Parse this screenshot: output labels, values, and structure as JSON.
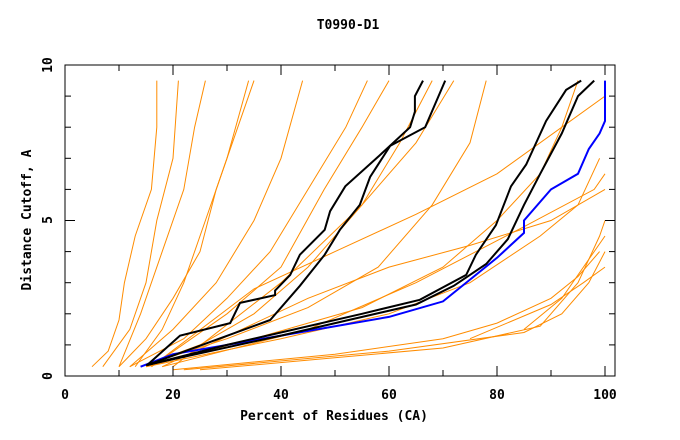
{
  "chart_data": {
    "type": "line",
    "title": "T0990-D1",
    "xlabel": "Percent of Residues (CA)",
    "ylabel": "Distance Cutoff, A",
    "xlim": [
      0,
      100
    ],
    "ylim": [
      0,
      10
    ],
    "x_ticks": [
      "0",
      "20",
      "40",
      "60",
      "80",
      "100"
    ],
    "y_ticks": [
      "0",
      "5",
      "10"
    ],
    "grid": false,
    "colors": {
      "other_models": "#ff8c00",
      "highlighted": "#000000",
      "best": "#0000ff"
    },
    "series": [
      {
        "color": "#0000ff",
        "points": [
          [
            14,
            0.3
          ],
          [
            20,
            0.7
          ],
          [
            40,
            1.3
          ],
          [
            60,
            1.9
          ],
          [
            70,
            2.4
          ],
          [
            75,
            3.1
          ],
          [
            80,
            3.8
          ],
          [
            85,
            4.6
          ],
          [
            85,
            5.0
          ],
          [
            90,
            6.0
          ],
          [
            95,
            6.5
          ],
          [
            97,
            7.3
          ],
          [
            99,
            7.8
          ],
          [
            100,
            8.2
          ],
          [
            100,
            9.5
          ]
        ]
      },
      {
        "color": "#000000",
        "points": [
          [
            15.2,
            0.35
          ],
          [
            21.3,
            1.3
          ],
          [
            30.6,
            1.7
          ],
          [
            32.4,
            2.35
          ],
          [
            38.9,
            2.6
          ],
          [
            38.9,
            2.75
          ],
          [
            41.7,
            3.25
          ],
          [
            43.5,
            3.9
          ],
          [
            48.1,
            4.7
          ],
          [
            49.1,
            5.3
          ],
          [
            51.9,
            6.1
          ],
          [
            58.3,
            7.1
          ],
          [
            63.9,
            8.0
          ],
          [
            64.8,
            8.5
          ],
          [
            64.8,
            9.0
          ],
          [
            66.3,
            9.5
          ]
        ]
      },
      {
        "color": "#000000",
        "points": [
          [
            15.2,
            0.35
          ],
          [
            38,
            1.8
          ],
          [
            43.5,
            2.9
          ],
          [
            48.1,
            3.9
          ],
          [
            50.9,
            4.7
          ],
          [
            54.6,
            5.5
          ],
          [
            56.5,
            6.4
          ],
          [
            60.2,
            7.4
          ],
          [
            66.7,
            8.0
          ],
          [
            70.4,
            9.5
          ]
        ]
      },
      {
        "color": "#000000",
        "points": [
          [
            15.2,
            0.35
          ],
          [
            30,
            1.0
          ],
          [
            55,
            2.0
          ],
          [
            65.7,
            2.45
          ],
          [
            74.3,
            3.25
          ],
          [
            76.1,
            3.9
          ],
          [
            79.8,
            4.85
          ],
          [
            82.6,
            6.1
          ],
          [
            85.4,
            6.8
          ],
          [
            89.1,
            8.2
          ],
          [
            92.8,
            9.2
          ],
          [
            95.6,
            9.5
          ]
        ]
      },
      {
        "color": "#000000",
        "points": [
          [
            15,
            0.35
          ],
          [
            40,
            1.3
          ],
          [
            65,
            2.3
          ],
          [
            72,
            2.9
          ],
          [
            78,
            3.6
          ],
          [
            82,
            4.4
          ],
          [
            85,
            5.5
          ],
          [
            88,
            6.5
          ],
          [
            92,
            7.8
          ],
          [
            95,
            9.0
          ],
          [
            98,
            9.5
          ]
        ]
      }
    ],
    "other_series": [
      [
        [
          5,
          0.3
        ],
        [
          8,
          0.8
        ],
        [
          10,
          1.8
        ],
        [
          11,
          3
        ],
        [
          13,
          4.5
        ],
        [
          16,
          6
        ],
        [
          17,
          8
        ],
        [
          17,
          9.5
        ]
      ],
      [
        [
          7,
          0.3
        ],
        [
          12,
          1.5
        ],
        [
          15,
          3
        ],
        [
          17,
          5
        ],
        [
          20,
          7
        ],
        [
          21,
          9.5
        ]
      ],
      [
        [
          10,
          0.3
        ],
        [
          15,
          1.2
        ],
        [
          20,
          2.5
        ],
        [
          25,
          4
        ],
        [
          28,
          6
        ],
        [
          32,
          8
        ],
        [
          35,
          9.5
        ]
      ],
      [
        [
          12,
          0.3
        ],
        [
          20,
          1.5
        ],
        [
          28,
          3
        ],
        [
          35,
          5
        ],
        [
          40,
          7
        ],
        [
          44,
          9.5
        ]
      ],
      [
        [
          12,
          0.3
        ],
        [
          22,
          1.2
        ],
        [
          30,
          2.5
        ],
        [
          38,
          4
        ],
        [
          45,
          6
        ],
        [
          52,
          8
        ],
        [
          56,
          9.5
        ]
      ],
      [
        [
          14,
          0.3
        ],
        [
          25,
          1
        ],
        [
          35,
          2
        ],
        [
          45,
          3.5
        ],
        [
          55,
          5.5
        ],
        [
          62,
          7.5
        ],
        [
          68,
          9.5
        ]
      ],
      [
        [
          14,
          0.3
        ],
        [
          30,
          1.2
        ],
        [
          45,
          2.2
        ],
        [
          58,
          3.5
        ],
        [
          68,
          5.5
        ],
        [
          75,
          7.5
        ],
        [
          78,
          9.5
        ]
      ],
      [
        [
          15,
          0.3
        ],
        [
          35,
          1.2
        ],
        [
          55,
          2.2
        ],
        [
          70,
          3.5
        ],
        [
          80,
          5
        ],
        [
          88,
          6.5
        ],
        [
          92,
          8
        ],
        [
          95,
          9.5
        ]
      ],
      [
        [
          15,
          0.3
        ],
        [
          40,
          1.2
        ],
        [
          60,
          2
        ],
        [
          75,
          3
        ],
        [
          88,
          4.5
        ],
        [
          95,
          5.5
        ],
        [
          99,
          7
        ]
      ],
      [
        [
          20,
          0.2
        ],
        [
          50,
          0.7
        ],
        [
          70,
          1.2
        ],
        [
          80,
          1.7
        ],
        [
          90,
          2.5
        ],
        [
          95,
          3.2
        ],
        [
          99,
          4
        ]
      ],
      [
        [
          22,
          0.2
        ],
        [
          60,
          0.8
        ],
        [
          85,
          1.4
        ],
        [
          92,
          2
        ],
        [
          97,
          3
        ],
        [
          100,
          4
        ]
      ],
      [
        [
          25,
          0.2
        ],
        [
          70,
          0.9
        ],
        [
          88,
          1.6
        ],
        [
          95,
          3
        ],
        [
          99,
          4.5
        ],
        [
          100,
          5
        ]
      ],
      [
        [
          18,
          0.3
        ],
        [
          45,
          1.5
        ],
        [
          65,
          3
        ],
        [
          85,
          4.8
        ],
        [
          98,
          6
        ],
        [
          100,
          6.5
        ]
      ],
      [
        [
          16,
          0.3
        ],
        [
          30,
          2
        ],
        [
          40,
          3.5
        ],
        [
          48,
          6
        ],
        [
          55,
          8
        ],
        [
          60,
          9.5
        ]
      ],
      [
        [
          13,
          0.3
        ],
        [
          18,
          1.5
        ],
        [
          22,
          3
        ],
        [
          26,
          5
        ],
        [
          30,
          7
        ],
        [
          34,
          9.5
        ]
      ],
      [
        [
          10,
          0.3
        ],
        [
          14,
          2
        ],
        [
          18,
          4
        ],
        [
          22,
          6
        ],
        [
          24,
          8
        ],
        [
          26,
          9.5
        ]
      ],
      [
        [
          16,
          0.3
        ],
        [
          35,
          2.8
        ],
        [
          50,
          4
        ],
        [
          65,
          5.2
        ],
        [
          80,
          6.5
        ],
        [
          92,
          8
        ],
        [
          100,
          9
        ]
      ],
      [
        [
          18,
          0.3
        ],
        [
          45,
          2.5
        ],
        [
          60,
          3.5
        ],
        [
          75,
          4.2
        ],
        [
          90,
          5
        ],
        [
          100,
          6
        ]
      ],
      [
        [
          20,
          0.3
        ],
        [
          40,
          3
        ],
        [
          55,
          5.5
        ],
        [
          65,
          7.5
        ],
        [
          72,
          9.5
        ]
      ],
      [
        [
          85,
          1.5
        ],
        [
          92,
          2.5
        ],
        [
          96,
          3.5
        ],
        [
          100,
          4.5
        ]
      ],
      [
        [
          75,
          1.2
        ],
        [
          90,
          2.3
        ],
        [
          96,
          3.0
        ],
        [
          100,
          3.5
        ]
      ]
    ]
  }
}
